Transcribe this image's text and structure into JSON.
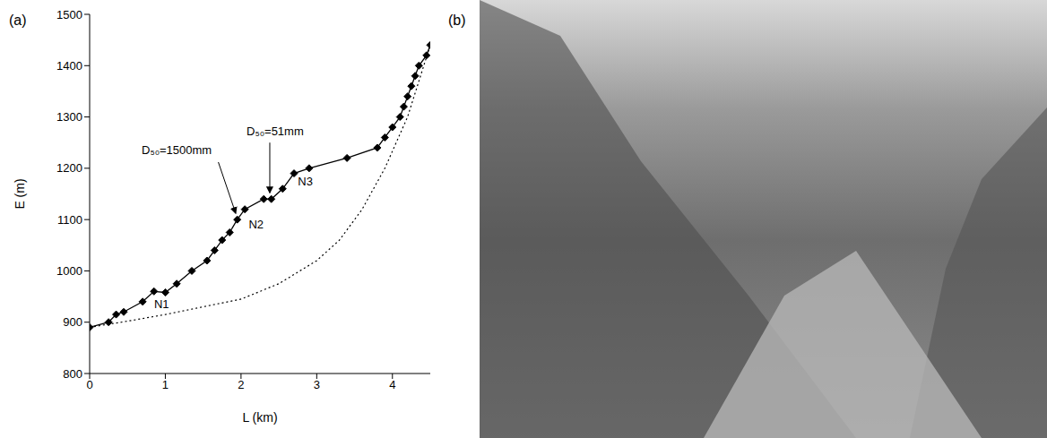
{
  "chart_data": {
    "type": "line",
    "xlabel": "L (km)",
    "ylabel": "E (m)",
    "xlim": [
      0,
      4.5
    ],
    "xticks": [
      0,
      1,
      2,
      3,
      4
    ],
    "ylim": [
      800,
      1500
    ],
    "yticks": [
      800,
      900,
      1000,
      1100,
      1200,
      1300,
      1400,
      1500
    ],
    "grid": false,
    "series": [
      {
        "color": "#000000",
        "marker": "diamond",
        "line_style": "solid",
        "x": [
          0,
          0.25,
          0.35,
          0.45,
          0.7,
          0.85,
          1.0,
          1.15,
          1.35,
          1.55,
          1.65,
          1.75,
          1.85,
          1.95,
          2.05,
          2.3,
          2.4,
          2.55,
          2.7,
          2.9,
          3.4,
          3.8,
          3.9,
          4.0,
          4.1,
          4.15,
          4.2,
          4.25,
          4.3,
          4.35,
          4.45,
          4.5
        ],
        "values": [
          890,
          900,
          915,
          920,
          940,
          960,
          958,
          975,
          1000,
          1020,
          1040,
          1060,
          1075,
          1100,
          1120,
          1140,
          1140,
          1160,
          1190,
          1200,
          1220,
          1240,
          1260,
          1280,
          1300,
          1320,
          1340,
          1360,
          1380,
          1400,
          1420,
          1440
        ]
      },
      {
        "color": "#000000",
        "marker": "none",
        "line_style": "dotted",
        "x": [
          0,
          0.5,
          1,
          1.5,
          2,
          2.5,
          3,
          3.3,
          3.6,
          3.9,
          4.2,
          4.5
        ],
        "values": [
          890,
          902,
          915,
          930,
          945,
          975,
          1020,
          1060,
          1120,
          1200,
          1300,
          1440
        ]
      }
    ],
    "annotations": [
      {
        "text": "N1",
        "x": 0.95,
        "y": 935
      },
      {
        "text": "N2",
        "x": 2.2,
        "y": 1090
      },
      {
        "text": "N3",
        "x": 2.85,
        "y": 1175
      },
      {
        "text": "D₅₀=1500mm",
        "x": 1.15,
        "y": 1235,
        "arrow_from": [
          1.7,
          1212
        ],
        "arrow_to": [
          1.93,
          1112
        ]
      },
      {
        "text": "D₅₀=51mm",
        "x": 2.45,
        "y": 1272,
        "arrow_from": [
          2.38,
          1250
        ],
        "arrow_to": [
          2.38,
          1152
        ]
      }
    ]
  },
  "panel_labels": [
    "(a)",
    "(b)"
  ]
}
